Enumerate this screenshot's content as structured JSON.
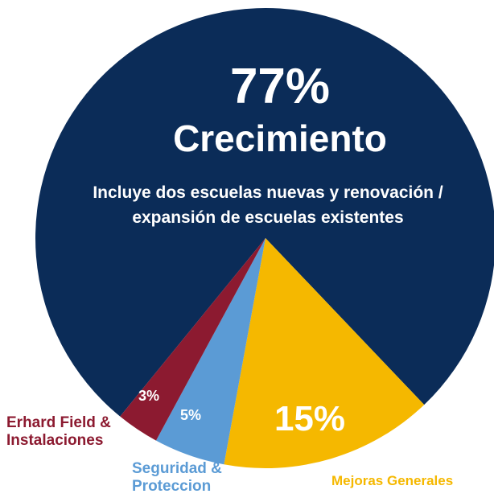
{
  "chart_data": {
    "type": "pie",
    "categories": [
      "Crecimiento",
      "Mejoras Generales",
      "Seguridad & Proteccion",
      "Erhard Field & Instalaciones"
    ],
    "values": [
      77,
      15,
      5,
      3
    ],
    "value_labels": [
      "77%",
      "15%",
      "5%",
      "3%"
    ],
    "colors": [
      "#0b2c58",
      "#f5b800",
      "#5b9bd5",
      "#8c1a30"
    ],
    "annotation": "Incluye dos escuelas nuevas y renovación / expansión de escuelas existentes"
  }
}
